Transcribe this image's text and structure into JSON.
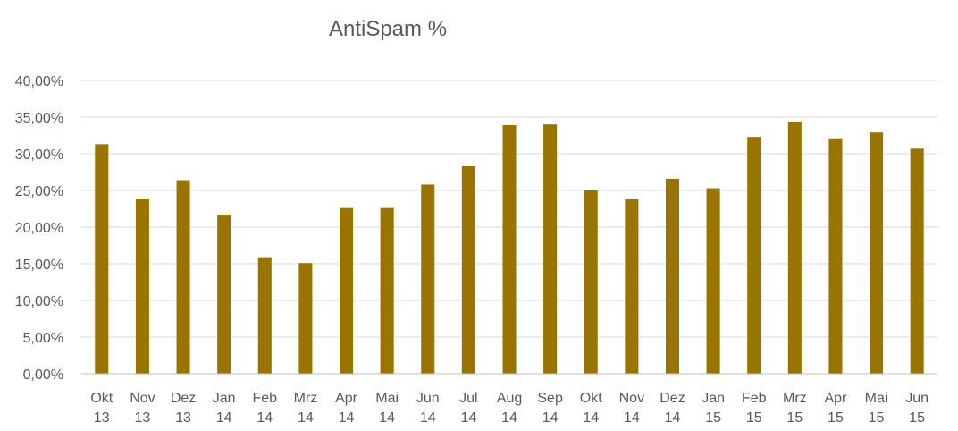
{
  "chart_data": {
    "type": "bar",
    "title": "AntiSpam %",
    "xlabel": "",
    "ylabel": "",
    "ylim": [
      0,
      40
    ],
    "ytick_step": 5,
    "ytick_labels": [
      "0,00%",
      "5,00%",
      "10,00%",
      "15,00%",
      "20,00%",
      "25,00%",
      "30,00%",
      "35,00%",
      "40,00%"
    ],
    "grid": true,
    "legend": "none",
    "bar_color": "#9a7400",
    "categories": [
      [
        "Okt",
        "13"
      ],
      [
        "Nov",
        "13"
      ],
      [
        "Dez",
        "13"
      ],
      [
        "Jan",
        "14"
      ],
      [
        "Feb",
        "14"
      ],
      [
        "Mrz",
        "14"
      ],
      [
        "Apr",
        "14"
      ],
      [
        "Mai",
        "14"
      ],
      [
        "Jun",
        "14"
      ],
      [
        "Jul",
        "14"
      ],
      [
        "Aug",
        "14"
      ],
      [
        "Sep",
        "14"
      ],
      [
        "Okt",
        "14"
      ],
      [
        "Nov",
        "14"
      ],
      [
        "Dez",
        "14"
      ],
      [
        "Jan",
        "15"
      ],
      [
        "Feb",
        "15"
      ],
      [
        "Mrz",
        "15"
      ],
      [
        "Apr",
        "15"
      ],
      [
        "Mai",
        "15"
      ],
      [
        "Jun",
        "15"
      ]
    ],
    "values": [
      31.3,
      23.9,
      26.4,
      21.7,
      15.9,
      15.1,
      22.6,
      22.6,
      25.8,
      28.3,
      33.9,
      34.0,
      25.0,
      23.8,
      26.6,
      25.3,
      32.3,
      34.4,
      32.1,
      32.9,
      30.7
    ]
  }
}
